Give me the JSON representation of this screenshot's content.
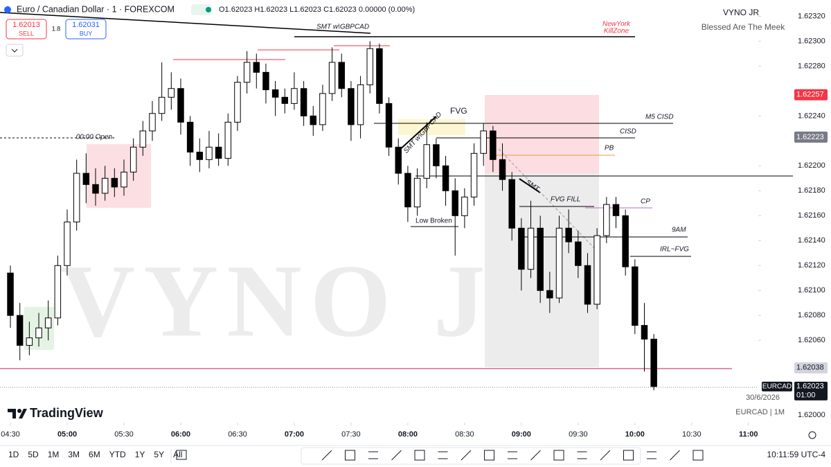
{
  "header": {
    "symbol": "Euro / Canadian Dollar · 1 · FOREXCOM",
    "ohlc": "O1.62023 H1.62023 L1.62023 C1.62023 0.00000 (0.00%)",
    "sell_price": "1.62013",
    "sell": "SELL",
    "spread": "1.8",
    "buy_price": "1.62031",
    "buy": "BUY"
  },
  "author": {
    "name": "VYNO JR",
    "tagline": "Blessed Are The Meek"
  },
  "watermark": "VYNO JR",
  "annotations": {
    "smt_top": "SMT w\\GBPCAD",
    "killzone_1": "NewYork",
    "killzone_2": "KillZone",
    "open": "00:00 Open",
    "fvg": "FVG",
    "smt_diag": "SMT w\\GBPCAD",
    "m5_cisd": "M5 CISD",
    "cisd": "CISD",
    "pb": "PB",
    "smt": "SMT",
    "fvg_fill": "FVG FILL",
    "cp": "CP",
    "nine_am": "9AM",
    "irl_fvg": "IRL~FVG",
    "low_broken": "Low Broken"
  },
  "date": "30/6/2026",
  "footer_symbol": "EURCAD | 1M",
  "brand": "TradingView",
  "toolbar": {
    "ranges": [
      "1D",
      "5D",
      "1M",
      "3M",
      "6M",
      "YTD",
      "1Y",
      "5Y",
      "All"
    ],
    "clock": "10:11:59 UTC-4"
  },
  "chart_data": {
    "type": "candlestick",
    "up_color": "#ffffff",
    "down_color": "#000000",
    "wick_color": "#000000",
    "x": [
      270,
      275,
      280,
      285,
      290,
      295,
      300,
      305,
      310,
      315,
      320,
      325,
      330,
      335,
      340,
      345,
      350,
      355,
      360,
      365,
      370,
      375,
      380,
      385,
      390,
      395,
      400,
      405,
      410,
      415,
      420,
      425,
      430,
      435,
      440,
      445,
      450,
      455,
      460,
      465,
      470,
      475,
      480,
      485,
      490,
      495,
      500,
      505,
      510,
      515,
      520,
      525,
      530,
      535,
      540,
      545,
      550,
      555,
      560,
      565,
      570,
      575,
      580,
      585,
      590,
      595,
      600,
      605,
      610
    ],
    "open": [
      1.62114,
      1.6208,
      1.62056,
      1.62062,
      1.6207,
      1.62078,
      1.6212,
      1.62155,
      1.62194,
      1.62185,
      1.62178,
      1.6219,
      1.62183,
      1.62195,
      1.62215,
      1.62228,
      1.62242,
      1.62255,
      1.62262,
      1.62235,
      1.62211,
      1.62205,
      1.62215,
      1.62206,
      1.62235,
      1.62267,
      1.62283,
      1.62275,
      1.62261,
      1.62255,
      1.6225,
      1.62262,
      1.6224,
      1.62233,
      1.62258,
      1.62283,
      1.62262,
      1.62233,
      1.62265,
      1.62294,
      1.6225,
      1.62215,
      1.62194,
      1.62167,
      1.6219,
      1.62217,
      1.622,
      1.6218,
      1.6216,
      1.62175,
      1.6221,
      1.62228,
      1.62205,
      1.62189,
      1.6215,
      1.62117,
      1.6215,
      1.621,
      1.62094,
      1.6215,
      1.62139,
      1.6212,
      1.62089,
      1.62144,
      1.62169,
      1.6216,
      1.62119,
      1.62072,
      1.62061
    ],
    "high": [
      1.6212,
      1.6209,
      1.62075,
      1.62082,
      1.62092,
      1.62128,
      1.62165,
      1.62205,
      1.6221,
      1.62198,
      1.622,
      1.62198,
      1.62205,
      1.62222,
      1.62236,
      1.62252,
      1.62283,
      1.62275,
      1.6227,
      1.6224,
      1.62222,
      1.62228,
      1.62226,
      1.62242,
      1.62272,
      1.62292,
      1.6229,
      1.62282,
      1.62268,
      1.62262,
      1.62275,
      1.62268,
      1.62248,
      1.62265,
      1.62295,
      1.6229,
      1.62268,
      1.62272,
      1.623,
      1.62298,
      1.62255,
      1.62222,
      1.622,
      1.62198,
      1.62235,
      1.62222,
      1.62208,
      1.6219,
      1.62182,
      1.62218,
      1.62234,
      1.62232,
      1.62218,
      1.62195,
      1.62158,
      1.62172,
      1.6216,
      1.62115,
      1.6216,
      1.62165,
      1.62148,
      1.6213,
      1.6215,
      1.62175,
      1.62175,
      1.62165,
      1.62125,
      1.6209,
      1.62065
    ],
    "low": [
      1.6207,
      1.62044,
      1.62048,
      1.62055,
      1.6206,
      1.62072,
      1.62112,
      1.62148,
      1.6217,
      1.62168,
      1.62172,
      1.62175,
      1.62176,
      1.62188,
      1.62208,
      1.6222,
      1.62236,
      1.62245,
      1.62225,
      1.622,
      1.62195,
      1.62198,
      1.622,
      1.622,
      1.62228,
      1.62258,
      1.62262,
      1.6225,
      1.6224,
      1.62242,
      1.62245,
      1.62232,
      1.62224,
      1.62228,
      1.62252,
      1.62255,
      1.6222,
      1.62222,
      1.62258,
      1.62242,
      1.62208,
      1.62185,
      1.62155,
      1.6216,
      1.62182,
      1.6219,
      1.62168,
      1.62128,
      1.6215,
      1.62168,
      1.622,
      1.62195,
      1.6218,
      1.6214,
      1.621,
      1.6211,
      1.6209,
      1.62082,
      1.6209,
      1.6213,
      1.6211,
      1.62082,
      1.62085,
      1.62138,
      1.6215,
      1.62112,
      1.62065,
      1.62035,
      1.6202
    ],
    "close": [
      1.6208,
      1.62056,
      1.62062,
      1.6207,
      1.62078,
      1.6212,
      1.62155,
      1.62194,
      1.62185,
      1.62178,
      1.6219,
      1.62183,
      1.62195,
      1.62215,
      1.62228,
      1.62242,
      1.62255,
      1.62262,
      1.62235,
      1.62211,
      1.62205,
      1.62215,
      1.62206,
      1.62235,
      1.62267,
      1.62283,
      1.62275,
      1.62261,
      1.62255,
      1.6225,
      1.62262,
      1.6224,
      1.62233,
      1.62258,
      1.62283,
      1.62262,
      1.62233,
      1.62265,
      1.62294,
      1.6225,
      1.62215,
      1.62194,
      1.62167,
      1.6219,
      1.62217,
      1.622,
      1.6218,
      1.6216,
      1.62175,
      1.6221,
      1.62228,
      1.62205,
      1.62189,
      1.6215,
      1.62117,
      1.6215,
      1.621,
      1.62094,
      1.6215,
      1.62139,
      1.6212,
      1.62089,
      1.62144,
      1.62169,
      1.6216,
      1.62119,
      1.62072,
      1.62061,
      1.62023
    ],
    "xlim": [
      264.5,
      665.2
    ],
    "ylim": [
      1.61994,
      1.62333
    ],
    "grid": false,
    "xticks": [
      {
        "value": 270,
        "label": "04:30"
      },
      {
        "value": 300,
        "label": "05:00"
      },
      {
        "value": 330,
        "label": "05:30"
      },
      {
        "value": 360,
        "label": "06:00"
      },
      {
        "value": 390,
        "label": "06:30"
      },
      {
        "value": 420,
        "label": "07:00"
      },
      {
        "value": 450,
        "label": "07:30"
      },
      {
        "value": 480,
        "label": "08:00"
      },
      {
        "value": 510,
        "label": "08:30"
      },
      {
        "value": 540,
        "label": "09:00"
      },
      {
        "value": 570,
        "label": "09:30"
      },
      {
        "value": 600,
        "label": "10:00"
      },
      {
        "value": 630,
        "label": "10:30"
      },
      {
        "value": 660,
        "label": "11:00"
      }
    ],
    "yticks": [
      {
        "value": 1.6232,
        "label": "1.62320"
      },
      {
        "value": 1.623,
        "label": "1.62300"
      },
      {
        "value": 1.6228,
        "label": "1.62280"
      },
      {
        "value": 1.6224,
        "label": "1.62240"
      },
      {
        "value": 1.622,
        "label": "1.62200"
      },
      {
        "value": 1.6218,
        "label": "1.62180"
      },
      {
        "value": 1.6216,
        "label": "1.62160"
      },
      {
        "value": 1.6214,
        "label": "1.62140"
      },
      {
        "value": 1.6212,
        "label": "1.62120"
      },
      {
        "value": 1.621,
        "label": "1.62100"
      },
      {
        "value": 1.6208,
        "label": "1.62080"
      },
      {
        "value": 1.6206,
        "label": "1.62060"
      },
      {
        "value": 1.62,
        "label": "1.62000"
      }
    ],
    "price_labels": [
      {
        "value": 1.62257,
        "color": "#f23645"
      },
      {
        "value": 1.62223,
        "color": "#787b86"
      },
      {
        "value": 1.62038,
        "color": "#d1d4dc"
      }
    ],
    "last": {
      "symbol": "EURCAD",
      "value": 1.62023,
      "countdown": "01:00"
    }
  }
}
